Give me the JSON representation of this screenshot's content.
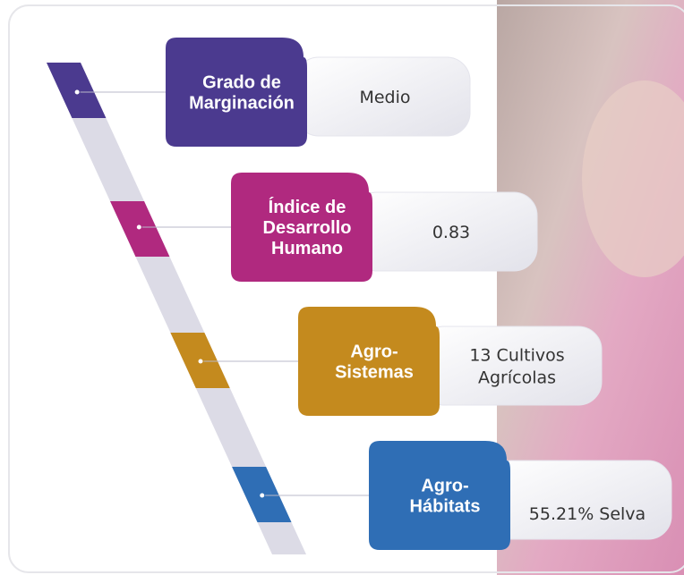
{
  "items": [
    {
      "label": [
        "Grado de",
        "Marginación"
      ],
      "value": [
        "Medio"
      ]
    },
    {
      "label": [
        "Índice de",
        "Desarrollo",
        "Humano"
      ],
      "value": [
        "0.83"
      ]
    },
    {
      "label": [
        "Agro-",
        "Sistemas"
      ],
      "value": [
        "13 Cultivos",
        "Agrícolas"
      ]
    },
    {
      "label": [
        "Agro-",
        "Hábitats"
      ],
      "value": [
        "55.21% Selva"
      ]
    }
  ]
}
